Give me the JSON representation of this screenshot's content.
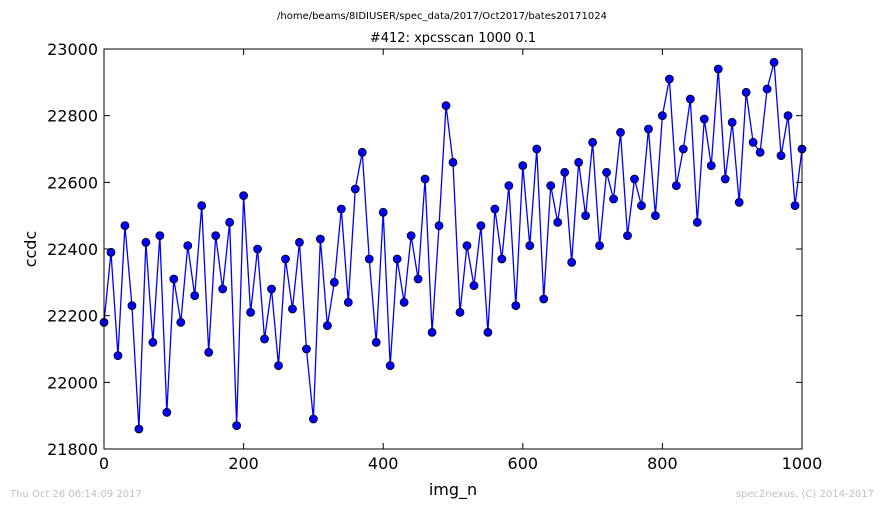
{
  "header": {
    "path": "/home/beams/8IDIUSER/spec_data/2017/Oct2017/bates20171024"
  },
  "footer": {
    "timestamp": "Thu Oct 26 06:14:09 2017",
    "credit": "spec2nexus, (C) 2014-2017"
  },
  "colors": {
    "series_line": "#0000ff",
    "marker_fill": "#0000ff",
    "marker_edge": "#000000",
    "axes": "#000000",
    "background": "#ffffff"
  },
  "chart_data": {
    "type": "line",
    "title": "#412: xpcsscan 1000 0.1",
    "xlabel": "img_n",
    "ylabel": "ccdc",
    "xlim": [
      0,
      1000
    ],
    "ylim": [
      21800,
      23000
    ],
    "x_ticks": [
      0,
      200,
      400,
      600,
      800,
      1000
    ],
    "y_ticks": [
      21800,
      22000,
      22200,
      22400,
      22600,
      22800,
      23000
    ],
    "grid": false,
    "legend": "none",
    "markers": "circle",
    "series": [
      {
        "x": [
          0,
          10,
          20,
          30,
          40,
          50,
          60,
          70,
          80,
          90,
          100,
          110,
          120,
          130,
          140,
          150,
          160,
          170,
          180,
          190,
          200,
          210,
          220,
          230,
          240,
          250,
          260,
          270,
          280,
          290,
          300,
          310,
          320,
          330,
          340,
          350,
          360,
          370,
          380,
          390,
          400,
          410,
          420,
          430,
          440,
          450,
          460,
          470,
          480,
          490,
          500,
          510,
          520,
          530,
          540,
          550,
          560,
          570,
          580,
          590,
          600,
          610,
          620,
          630,
          640,
          650,
          660,
          670,
          680,
          690,
          700,
          710,
          720,
          730,
          740,
          750,
          760,
          770,
          780,
          790,
          800,
          810,
          820,
          830,
          840,
          850,
          860,
          870,
          880,
          890,
          900,
          910,
          920,
          930,
          940,
          950,
          960,
          970,
          980,
          990,
          1000
        ],
        "values": [
          22180,
          22390,
          22080,
          22470,
          22230,
          21860,
          22420,
          22120,
          22440,
          21910,
          22310,
          22180,
          22410,
          22260,
          22530,
          22090,
          22440,
          22280,
          22480,
          21870,
          22560,
          22210,
          22400,
          22130,
          22280,
          22050,
          22370,
          22220,
          22420,
          22100,
          21890,
          22430,
          22170,
          22300,
          22520,
          22240,
          22580,
          22690,
          22370,
          22120,
          22510,
          22050,
          22370,
          22240,
          22440,
          22310,
          22610,
          22150,
          22470,
          22830,
          22660,
          22210,
          22410,
          22290,
          22470,
          22150,
          22520,
          22370,
          22590,
          22230,
          22650,
          22410,
          22700,
          22250,
          22590,
          22480,
          22630,
          22360,
          22660,
          22500,
          22720,
          22410,
          22630,
          22550,
          22750,
          22440,
          22610,
          22530,
          22760,
          22500,
          22800,
          22910,
          22590,
          22700,
          22850,
          22480,
          22790,
          22650,
          22940,
          22610,
          22780,
          22540,
          22870,
          22720,
          22690,
          22880,
          22960,
          22680,
          22800,
          22530,
          22700
        ]
      }
    ]
  }
}
